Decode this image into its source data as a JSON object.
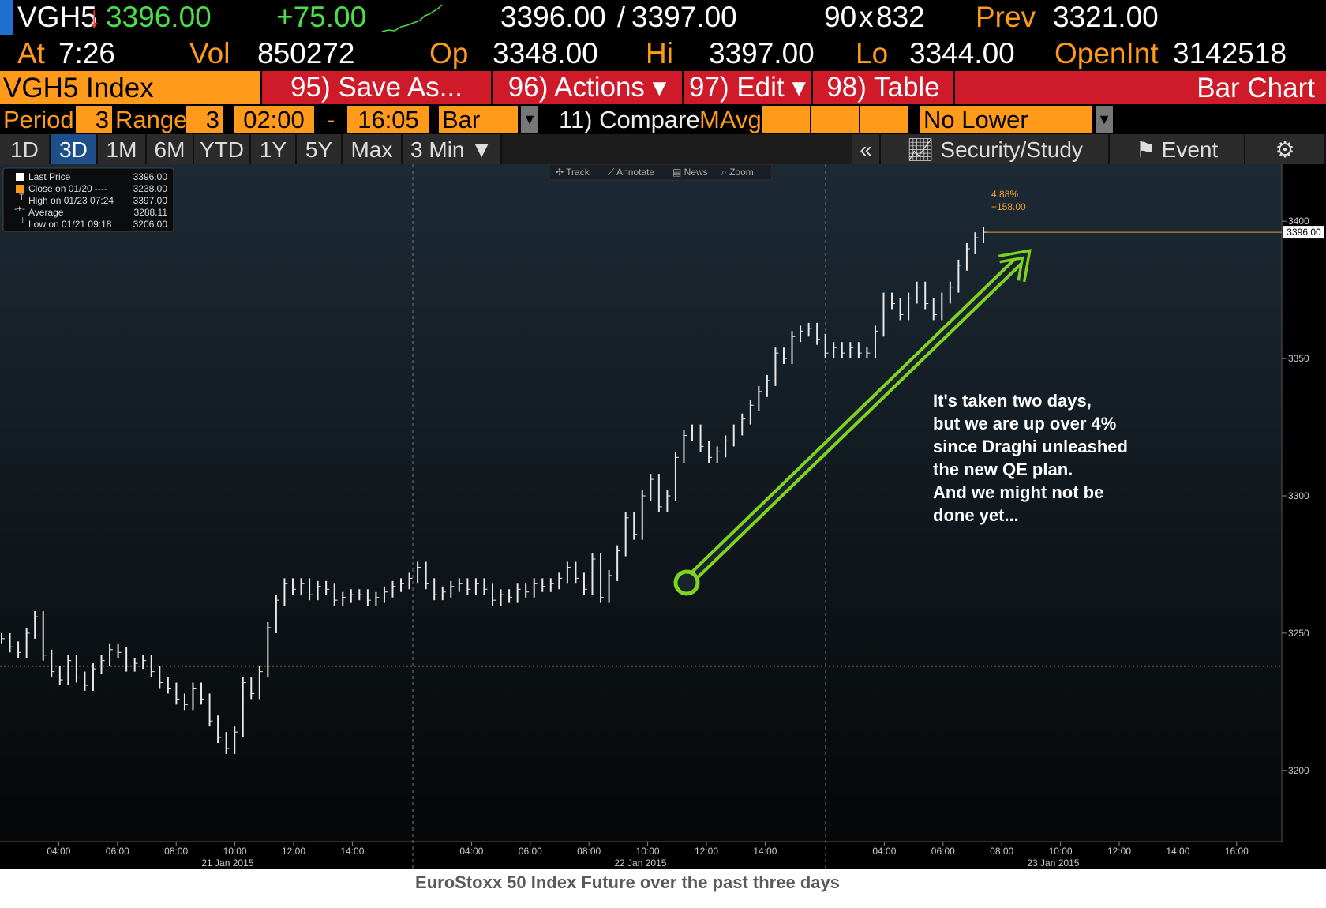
{
  "quote": {
    "ticker": "VGH5",
    "arrow": "↓",
    "last_price": "3396.00",
    "change": "+75.00",
    "bid": "3396.00",
    "ask_sep": "/",
    "ask": "3397.00",
    "size_bid": "90",
    "size_x": "x",
    "size_ask": "832",
    "prev_label": "Prev",
    "prev_value": "3321.00",
    "at_label": "At",
    "at_time": "7:26",
    "vol_label": "Vol",
    "vol_value": "850272",
    "op_label": "Op",
    "op_value": "3348.00",
    "hi_label": "Hi",
    "hi_value": "3397.00",
    "lo_label": "Lo",
    "lo_value": "3344.00",
    "openint_label": "OpenInt",
    "openint_value": "3142518"
  },
  "titlebar": {
    "security": "VGH5 Index",
    "save_as": "95) Save As...",
    "actions": "96) Actions ▾",
    "edit": "97) Edit ▾",
    "table": "98) Table",
    "chart_name": "Bar Chart"
  },
  "params": {
    "period_label": "Period",
    "period_value": "3",
    "range_label": "Range",
    "range_value": "3",
    "start_time": "02:00",
    "dash": "-",
    "end_time": "16:05",
    "bar_type": "Bar",
    "compare": "11) Compare",
    "mavg": "MAvg.",
    "lower_chart": "No Lower Chart"
  },
  "tabs": [
    "1D",
    "3D",
    "1M",
    "6M",
    "YTD",
    "1Y",
    "5Y",
    "Max",
    "3 Min ▼"
  ],
  "active_tab": "3D",
  "toolbar_right": {
    "collapse": "«",
    "security_study": "Security/Study",
    "event": "Event"
  },
  "chart_tools": [
    "Track",
    "Annotate",
    "News",
    "Zoom"
  ],
  "legend": [
    {
      "label": "Last Price",
      "value": "3396.00"
    },
    {
      "label": "Close on 01/20 ----",
      "value": "3238.00"
    },
    {
      "label": "High on 01/23 07:24",
      "value": "3397.00"
    },
    {
      "label": "Average",
      "value": "3288.11"
    },
    {
      "label": "Low on 01/21 09:18",
      "value": "3206.00"
    }
  ],
  "annotation": {
    "pct": "4.88%",
    "abs": "+158.00",
    "last_tag": "3396.00",
    "lines": [
      "It's taken two days,",
      "but we are up over 4%",
      "since Draghi unleashed",
      "the new QE plan.",
      "And we might not be",
      "done yet..."
    ]
  },
  "caption": "EuroStoxx 50 Index Future over the past three days",
  "colors": {
    "orange": "#ff9a1a",
    "red_button": "#cf1a2a",
    "green_up": "#4be04b",
    "arrow_green": "#7ed321"
  },
  "chart_data": {
    "type": "bar",
    "ylim": [
      3185,
      3415
    ],
    "yticks": [
      3200,
      3250,
      3300,
      3350,
      3400
    ],
    "prev_close": 3238,
    "last": 3396,
    "days": [
      {
        "label": "21 Jan 2015",
        "ticks": [
          "04:00",
          "06:00",
          "08:00",
          "10:00",
          "12:00",
          "14:00"
        ]
      },
      {
        "label": "22 Jan 2015",
        "ticks": [
          "04:00",
          "06:00",
          "08:00",
          "10:00",
          "12:00",
          "14:00"
        ]
      },
      {
        "label": "23 Jan 2015",
        "ticks": [
          "04:00",
          "06:00",
          "08:00",
          "10:00",
          "12:00",
          "14:00",
          "16:00"
        ]
      }
    ],
    "series": [
      {
        "values": [
          3248,
          3245,
          3243,
          3250,
          3256,
          3242,
          3236,
          3233,
          3240,
          3234,
          3231,
          3237,
          3240,
          3244,
          3243,
          3238,
          3239,
          3240,
          3236,
          3232,
          3230,
          3226,
          3224,
          3230,
          3226,
          3218,
          3212,
          3208,
          3214,
          3232,
          3228,
          3236,
          3252,
          3262,
          3268,
          3266,
          3268,
          3264,
          3267,
          3266,
          3262,
          3263,
          3264,
          3264,
          3262,
          3263,
          3265,
          3267,
          3268,
          3270,
          3274,
          3268,
          3264,
          3265,
          3267,
          3268,
          3266,
          3268,
          3266,
          3262,
          3264,
          3263,
          3266,
          3265,
          3268,
          3267,
          3268,
          3270,
          3274,
          3270,
          3266,
          3277,
          3263,
          3271,
          3280,
          3292,
          3286,
          3300,
          3306,
          3296,
          3300,
          3314,
          3322,
          3324,
          3318,
          3314,
          3316,
          3320,
          3324,
          3328,
          3333,
          3338,
          3342,
          3352,
          3350,
          3358,
          3360,
          3361,
          3357,
          3352,
          3354,
          3352,
          3354,
          3352,
          3352,
          3360,
          3372,
          3370,
          3366,
          3372,
          3376,
          3370,
          3366,
          3372,
          3376,
          3384,
          3390,
          3394,
          3396
        ]
      }
    ]
  }
}
